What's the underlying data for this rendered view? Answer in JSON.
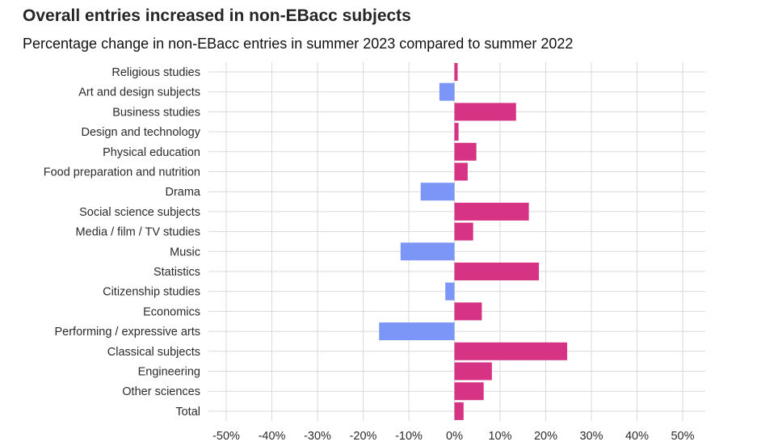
{
  "chart_data": {
    "type": "bar",
    "orientation": "horizontal",
    "title": "Overall entries increased in non-EBacc subjects",
    "subtitle": "Percentage change in non-EBacc entries in summer 2023 compared to summer 2022",
    "categories": [
      "Religious studies",
      "Art and design subjects",
      "Business studies",
      "Design and technology",
      "Physical education",
      "Food preparation and nutrition",
      "Drama",
      "Social science subjects",
      "Media / film / TV studies",
      "Music",
      "Statistics",
      "Citizenship studies",
      "Economics",
      "Performing / expressive arts",
      "Classical subjects",
      "Engineering",
      "Other sciences",
      "Total"
    ],
    "values": [
      0.7,
      -3.3,
      13.5,
      0.9,
      4.8,
      2.9,
      -7.4,
      16.3,
      4.1,
      -11.8,
      18.5,
      -2.0,
      6.0,
      -16.5,
      24.7,
      8.2,
      6.4,
      2.0
    ],
    "xlim": [
      -50,
      50
    ],
    "xticks": [
      -50,
      -40,
      -30,
      -20,
      -10,
      0,
      10,
      20,
      30,
      40,
      50
    ],
    "xtick_labels": [
      "-50%",
      "-40%",
      "-30%",
      "-20%",
      "-10%",
      "0%",
      "10%",
      "20%",
      "30%",
      "40%",
      "50%"
    ],
    "xlabel": "",
    "ylabel": "",
    "grid": true,
    "colors": {
      "positive": "#d63384",
      "negative": "#7b96f7",
      "grid": "#d9d9d9"
    }
  }
}
